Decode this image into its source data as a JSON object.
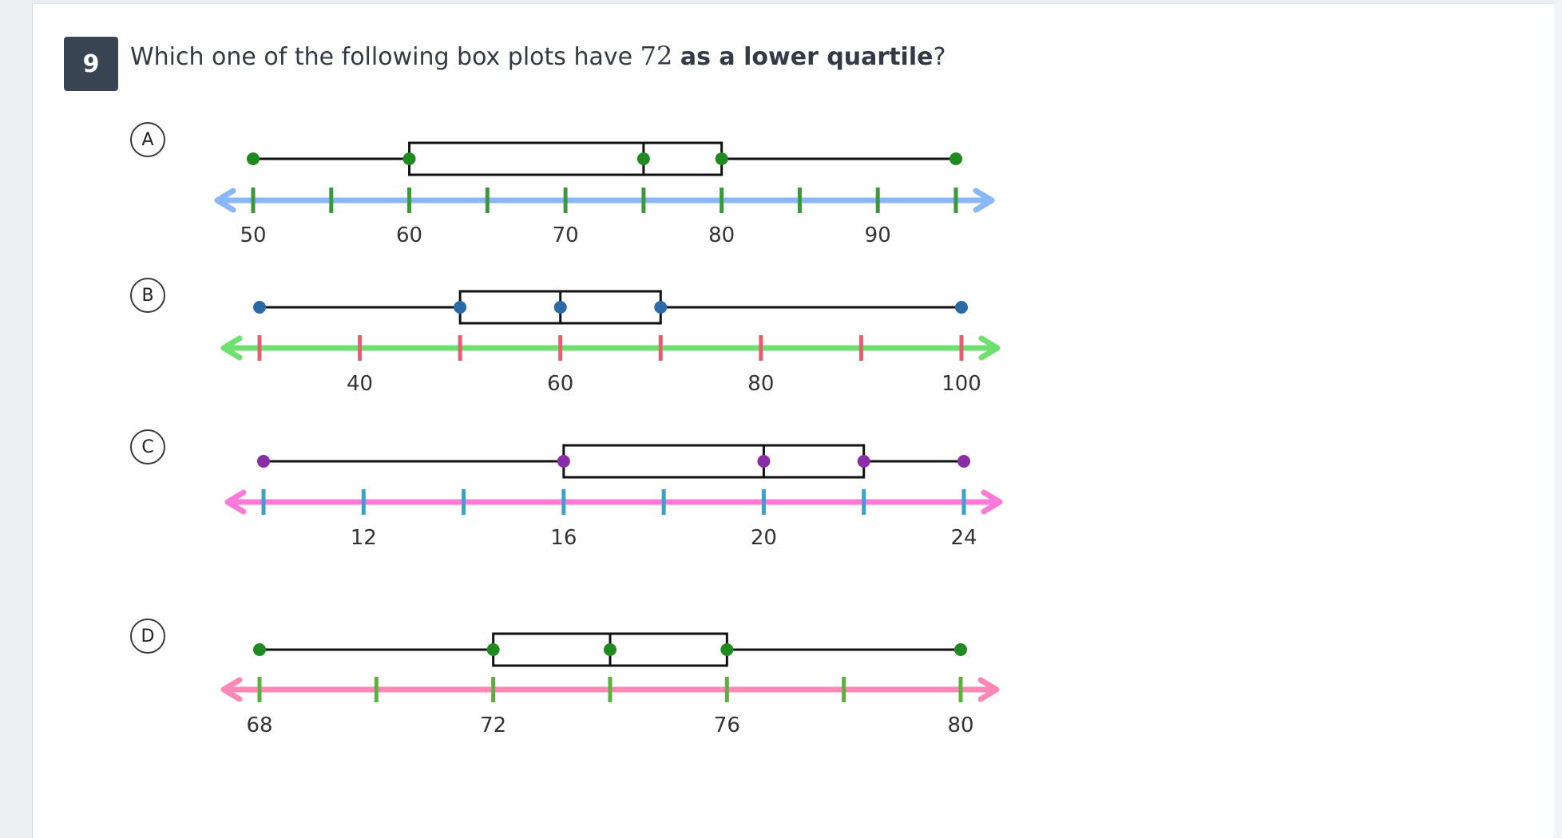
{
  "question": {
    "number": "9",
    "text_before": "Which one of the following box plots have ",
    "value": "72",
    "text_bold": "as a lower quartile",
    "text_after": "?"
  },
  "chart_data": [
    {
      "type": "boxplot",
      "option": "A",
      "min": 50,
      "q1": 60,
      "median": 75,
      "q3": 80,
      "max": 95,
      "axis_min": 50,
      "axis_max": 95,
      "tick_step": 5,
      "tick_labels": [
        "50",
        "60",
        "70",
        "80",
        "90"
      ],
      "label_values": [
        50,
        60,
        70,
        80,
        90
      ],
      "axis_color": "#8ab6fa",
      "tick_color": "#3a9a3a",
      "dot_color": "#1f8a1f"
    },
    {
      "type": "boxplot",
      "option": "B",
      "min": 30,
      "q1": 50,
      "median": 60,
      "q3": 70,
      "max": 100,
      "axis_min": 30,
      "axis_max": 100,
      "tick_step": 10,
      "tick_labels": [
        "40",
        "60",
        "80",
        "100"
      ],
      "label_values": [
        40,
        60,
        80,
        100
      ],
      "axis_color": "#6ee06e",
      "tick_color": "#e06070",
      "dot_color": "#2a6aa6"
    },
    {
      "type": "boxplot",
      "option": "C",
      "min": 10,
      "q1": 16,
      "median": 20,
      "q3": 22,
      "max": 24,
      "axis_min": 10,
      "axis_max": 24,
      "tick_step": 2,
      "tick_labels": [
        "12",
        "16",
        "20",
        "24"
      ],
      "label_values": [
        12,
        16,
        20,
        24
      ],
      "axis_color": "#ff7ad8",
      "tick_color": "#3aa0cc",
      "dot_color": "#8a2ea6"
    },
    {
      "type": "boxplot",
      "option": "D",
      "min": 68,
      "q1": 72,
      "median": 74,
      "q3": 76,
      "max": 80,
      "axis_min": 68,
      "axis_max": 80,
      "tick_step": 2,
      "tick_labels": [
        "68",
        "72",
        "76",
        "80"
      ],
      "label_values": [
        68,
        72,
        76,
        80
      ],
      "axis_color": "#ff88b4",
      "tick_color": "#5cb040",
      "dot_color": "#1f8a1f"
    }
  ]
}
